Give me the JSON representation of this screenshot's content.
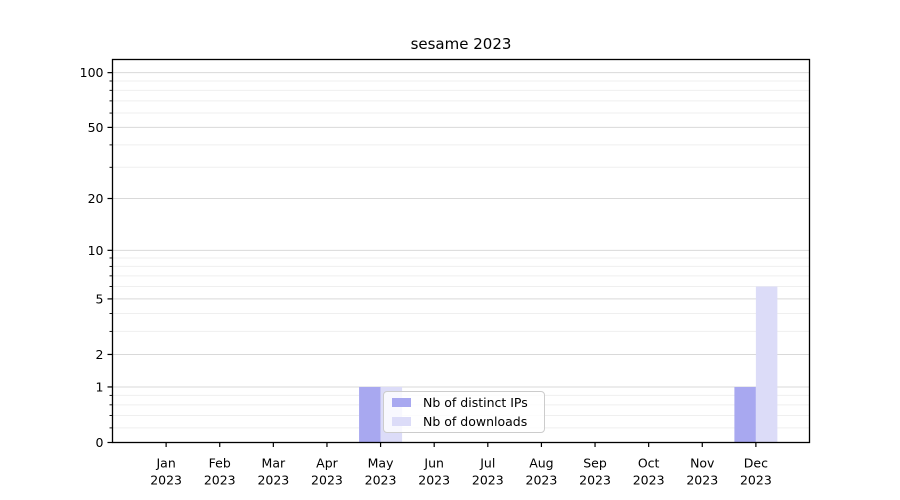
{
  "page": {
    "background": "#ffffff"
  },
  "chart_data": {
    "type": "bar",
    "title": "sesame 2023",
    "xlabel": "",
    "ylabel": "",
    "x": {
      "categories": [
        "Jan",
        "Feb",
        "Mar",
        "Apr",
        "May",
        "Jun",
        "Jul",
        "Aug",
        "Sep",
        "Oct",
        "Nov",
        "Dec"
      ],
      "year": "2023"
    },
    "series": [
      {
        "name": "Nb of distinct IPs",
        "color": "#a8a8f0",
        "values": [
          0,
          0,
          0,
          0,
          1,
          0,
          0,
          0,
          0,
          0,
          0,
          1
        ]
      },
      {
        "name": "Nb of downloads",
        "color": "#dcdcf8",
        "values": [
          0,
          0,
          0,
          0,
          1,
          0,
          0,
          0,
          0,
          0,
          0,
          6
        ]
      }
    ],
    "y_axis": {
      "scale": "log1p",
      "major_ticks": [
        0,
        1,
        2,
        5,
        10,
        20,
        50,
        100
      ],
      "minor_ticks": [
        0.2,
        0.4,
        0.6,
        0.8,
        3,
        4,
        6,
        7,
        8,
        9,
        30,
        40,
        60,
        70,
        80,
        90
      ],
      "min": 0,
      "max": 118
    },
    "grid": {
      "major_color": "#d9d9d9",
      "minor_color": "#efefef",
      "horizontal_only": true
    },
    "axis_color": "#000000",
    "text_color": "#000000",
    "legend": {
      "position": "lower center inside"
    }
  }
}
